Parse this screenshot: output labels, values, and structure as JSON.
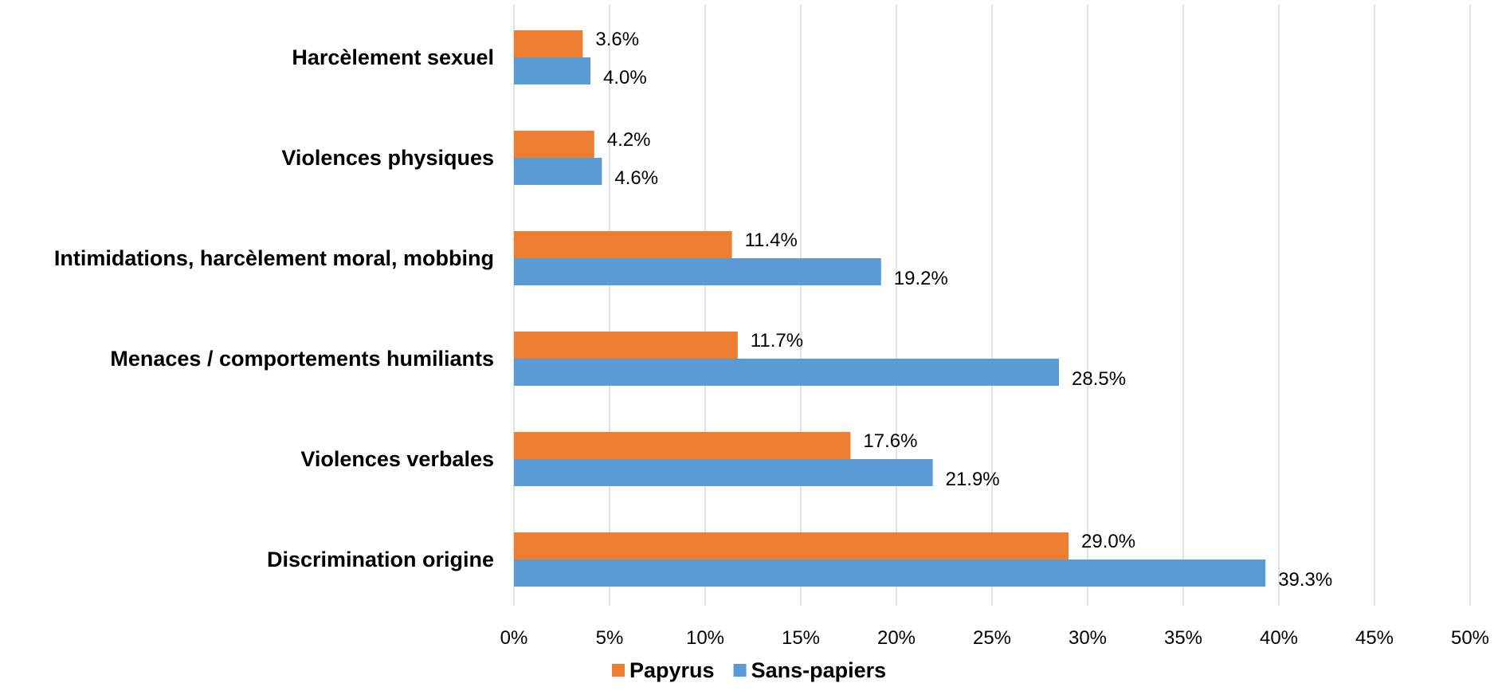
{
  "chart_data": {
    "type": "bar",
    "orientation": "horizontal",
    "categories": [
      "Harcèlement sexuel",
      "Violences physiques",
      "Intimidations, harcèlement moral, mobbing",
      "Menaces / comportements humiliants",
      "Violences verbales",
      "Discrimination origine"
    ],
    "series": [
      {
        "name": "Papyrus",
        "color": "#ED7D31",
        "values": [
          3.6,
          4.2,
          11.4,
          11.7,
          17.6,
          29.0
        ],
        "labels": [
          "3.6%",
          "4.2%",
          "11.4%",
          "11.7%",
          "17.6%",
          "29.0%"
        ]
      },
      {
        "name": "Sans-papiers",
        "color": "#5B9BD5",
        "values": [
          4.0,
          4.6,
          19.2,
          28.5,
          21.9,
          39.3
        ],
        "labels": [
          "4.0%",
          "4.6%",
          "19.2%",
          "28.5%",
          "21.9%",
          "39.3%"
        ]
      }
    ],
    "xlim": [
      0,
      50
    ],
    "x_ticks": [
      0,
      5,
      10,
      15,
      20,
      25,
      30,
      35,
      40,
      45,
      50
    ],
    "x_tick_labels": [
      "0%",
      "5%",
      "10%",
      "15%",
      "20%",
      "25%",
      "30%",
      "35%",
      "40%",
      "45%",
      "50%"
    ],
    "grid": true,
    "legend_position": "bottom"
  }
}
